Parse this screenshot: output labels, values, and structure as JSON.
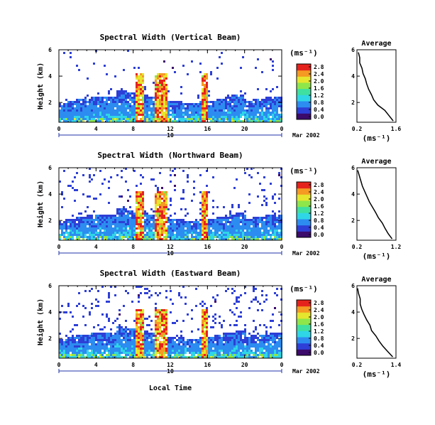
{
  "chart_data": [
    {
      "type": "heatmap",
      "title": "Spectral Width (Vertical Beam)",
      "ylabel": "Height (km)",
      "xlabel": "",
      "x_ticks": [
        "0",
        "4",
        "8",
        "12",
        "16",
        "20",
        "0"
      ],
      "xlim": [
        0,
        24
      ],
      "y_ticks": [
        "2",
        "4",
        "6"
      ],
      "ylim": [
        0.5,
        6
      ],
      "date_day": "10",
      "date_month_year": "Mar 2002",
      "colorbar": {
        "unit": "(ms⁻¹)",
        "ticks": [
          "0.0",
          "0.4",
          "0.8",
          "1.2",
          "1.6",
          "2.0",
          "2.4",
          "2.8"
        ],
        "range": [
          0,
          2.8
        ]
      },
      "profile": {
        "title": "Average",
        "xlabel": "(ms⁻¹)",
        "x_ticks": [
          "0.2",
          "1.6"
        ],
        "xlim": [
          0.2,
          1.6
        ],
        "y_ticks": [
          "2",
          "4",
          "6"
        ],
        "ylim": [
          0.5,
          6
        ],
        "heights": [
          0.6,
          1.0,
          1.4,
          1.8,
          2.2,
          2.6,
          3.0,
          3.4,
          3.8,
          4.2,
          4.6,
          5.0,
          5.4,
          5.8
        ],
        "values": [
          1.5,
          1.35,
          1.2,
          0.95,
          0.8,
          0.72,
          0.62,
          0.55,
          0.5,
          0.42,
          0.38,
          0.3,
          0.3,
          0.25
        ]
      }
    },
    {
      "type": "heatmap",
      "title": "Spectral Width (Northward Beam)",
      "ylabel": "Height (km)",
      "xlabel": "",
      "x_ticks": [
        "0",
        "4",
        "8",
        "12",
        "16",
        "20",
        "0"
      ],
      "xlim": [
        0,
        24
      ],
      "y_ticks": [
        "2",
        "4",
        "6"
      ],
      "ylim": [
        0.5,
        6
      ],
      "date_day": "10",
      "date_month_year": "Mar 2002",
      "colorbar": {
        "unit": "(ms⁻¹)",
        "ticks": [
          "0.0",
          "0.4",
          "0.8",
          "1.2",
          "1.6",
          "2.0",
          "2.4",
          "2.8"
        ],
        "range": [
          0,
          2.8
        ]
      },
      "profile": {
        "title": "Average",
        "xlabel": "(ms⁻¹)",
        "x_ticks": [
          "0.2",
          "1.2"
        ],
        "xlim": [
          0.2,
          1.2
        ],
        "y_ticks": [
          "2",
          "4",
          "6"
        ],
        "ylim": [
          0.5,
          6
        ],
        "heights": [
          0.6,
          1.0,
          1.4,
          1.8,
          2.2,
          2.6,
          3.0,
          3.4,
          3.8,
          4.2,
          4.6,
          5.0,
          5.4,
          5.8
        ],
        "values": [
          1.1,
          1.0,
          0.92,
          0.85,
          0.75,
          0.68,
          0.6,
          0.52,
          0.46,
          0.4,
          0.34,
          0.3,
          0.26,
          0.22
        ]
      }
    },
    {
      "type": "heatmap",
      "title": "Spectral Width (Eastward Beam)",
      "ylabel": "Height (km)",
      "xlabel": "Local Time",
      "x_ticks": [
        "0",
        "4",
        "8",
        "12",
        "16",
        "20",
        "0"
      ],
      "xlim": [
        0,
        24
      ],
      "y_ticks": [
        "2",
        "4",
        "6"
      ],
      "ylim": [
        0.5,
        6
      ],
      "date_day": "10",
      "date_month_year": "Mar 2002",
      "colorbar": {
        "unit": "(ms⁻¹)",
        "ticks": [
          "0.0",
          "0.4",
          "0.8",
          "1.2",
          "1.6",
          "2.0",
          "2.4",
          "2.8"
        ],
        "range": [
          0,
          2.8
        ]
      },
      "profile": {
        "title": "Average",
        "xlabel": "(ms⁻¹)",
        "x_ticks": [
          "0.2",
          "1.4"
        ],
        "xlim": [
          0.2,
          1.4
        ],
        "y_ticks": [
          "2",
          "4",
          "6"
        ],
        "ylim": [
          0.5,
          6
        ],
        "heights": [
          0.6,
          1.0,
          1.4,
          1.8,
          2.2,
          2.6,
          3.0,
          3.4,
          3.8,
          4.2,
          4.6,
          5.0,
          5.4,
          5.8
        ],
        "values": [
          1.3,
          1.15,
          1.0,
          0.88,
          0.78,
          0.65,
          0.6,
          0.5,
          0.42,
          0.35,
          0.3,
          0.3,
          0.25,
          0.22
        ]
      }
    }
  ],
  "colormap": [
    "#3b0a6b",
    "#2d3fd6",
    "#2c8cf0",
    "#2fd6e6",
    "#3fe0a0",
    "#8ee64a",
    "#e6e62e",
    "#f59a22",
    "#e5231c"
  ]
}
